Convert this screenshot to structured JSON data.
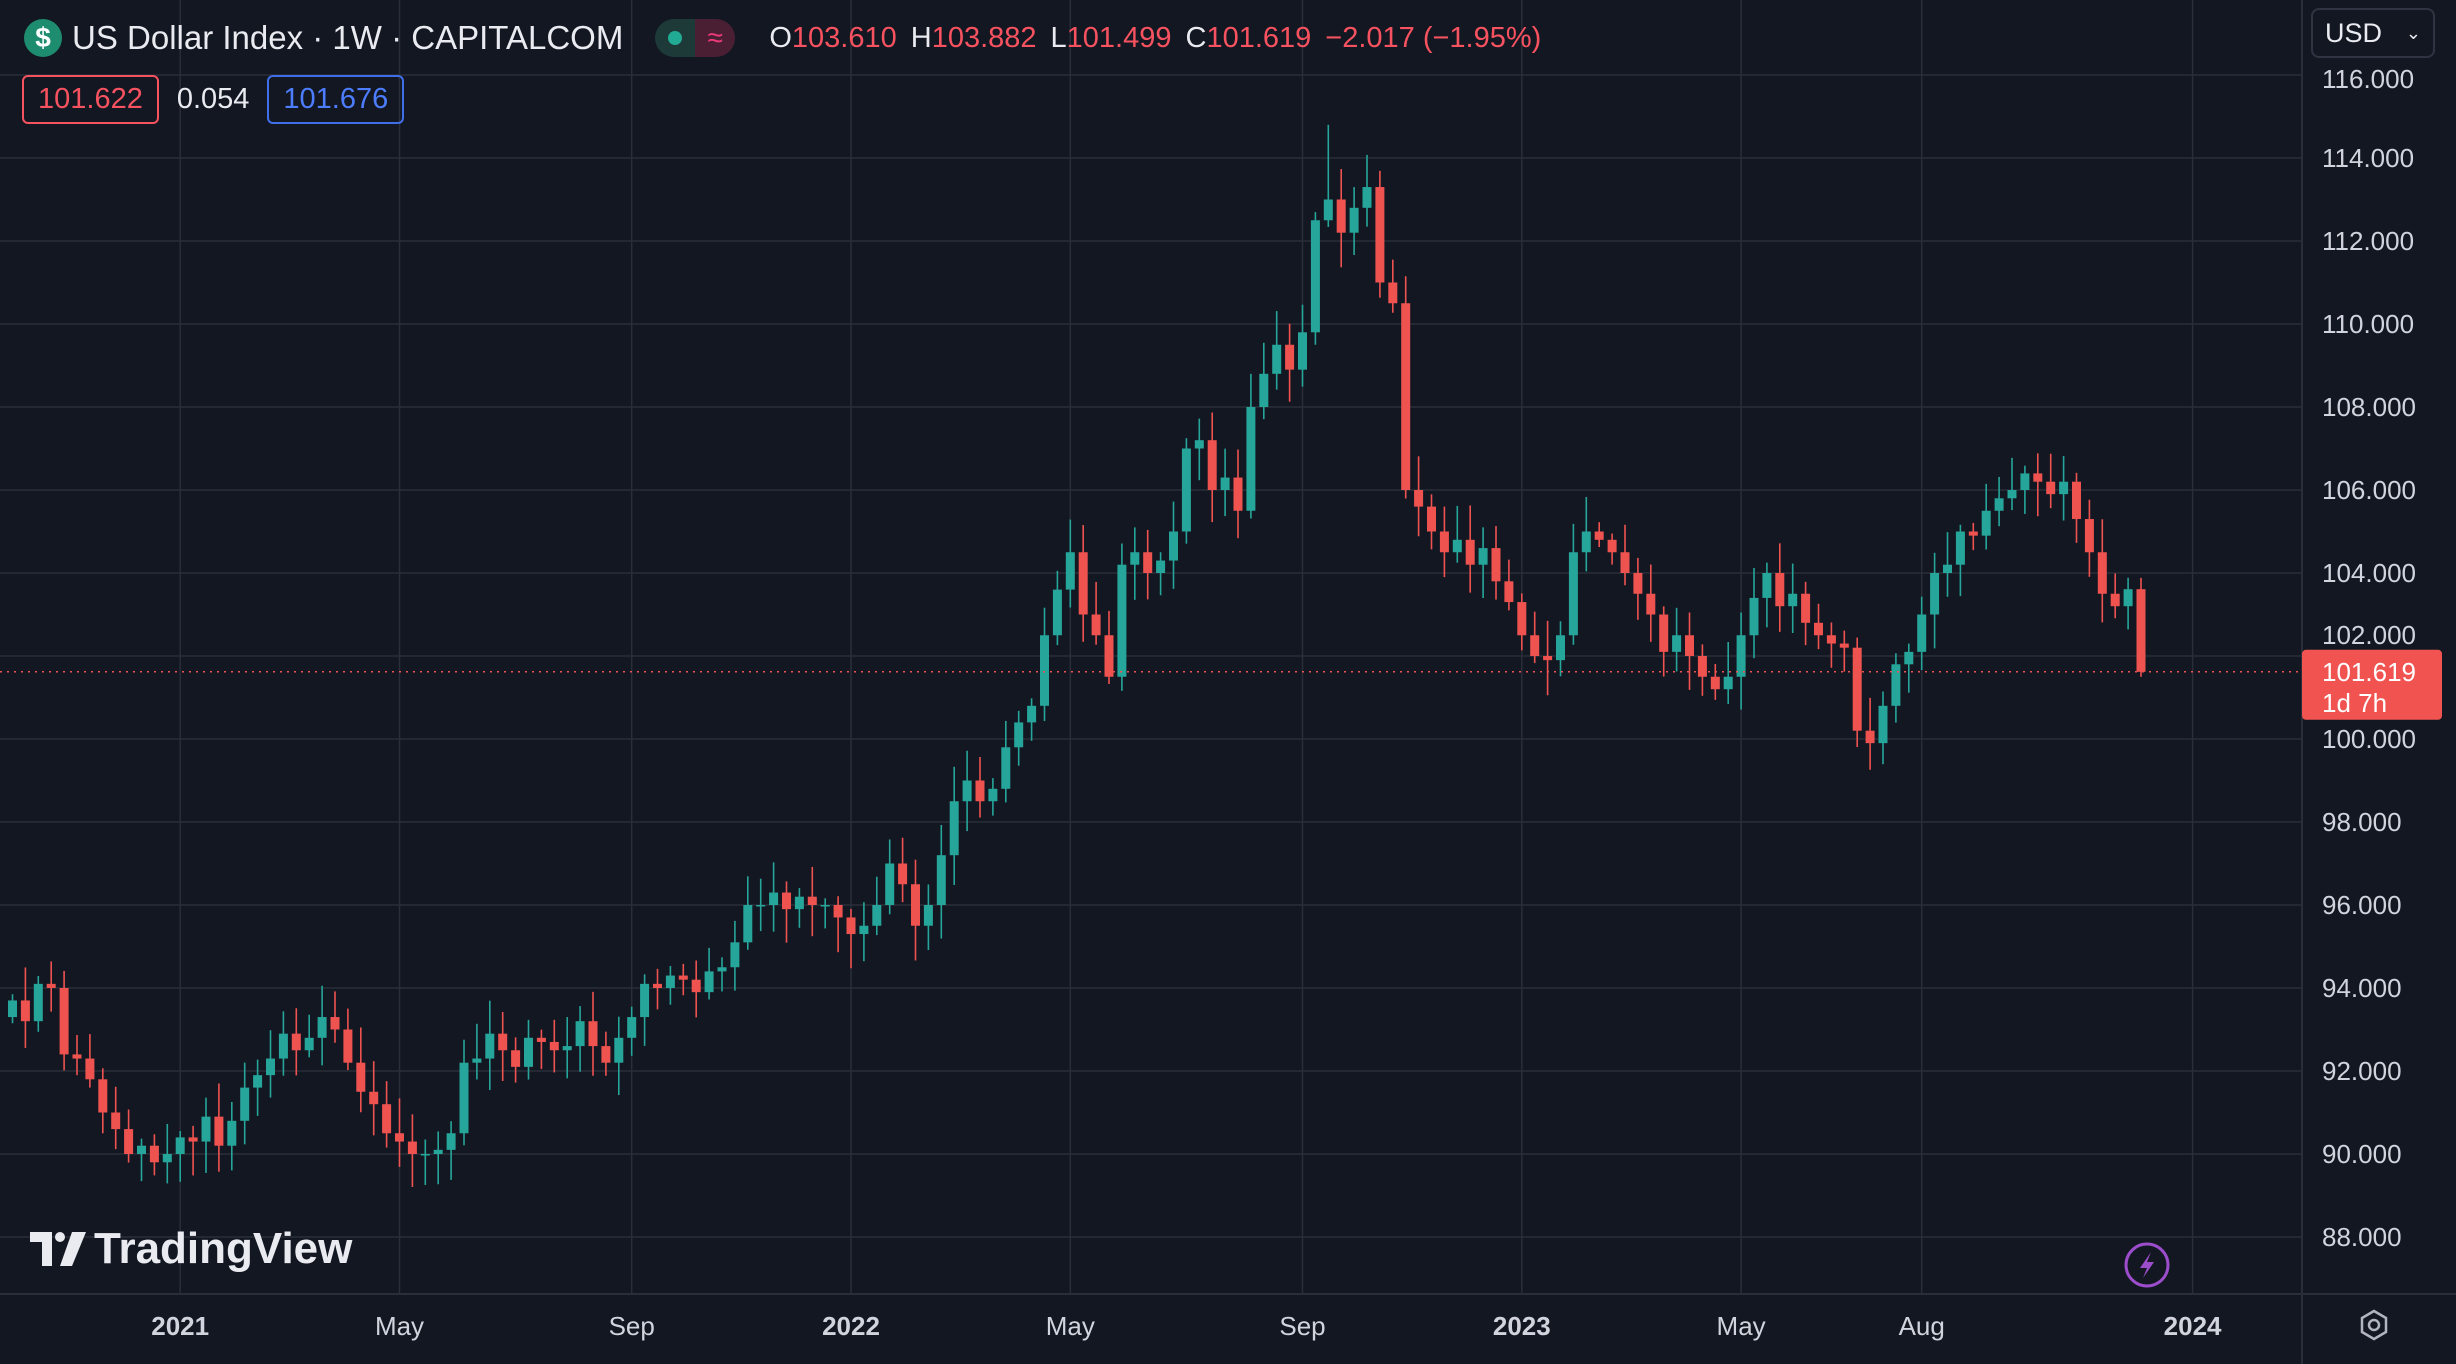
{
  "header": {
    "symbol_icon": "$",
    "title": "US Dollar Index · 1W · CAPITALCOM",
    "ohlc": {
      "o_label": "O",
      "o": "103.610",
      "h_label": "H",
      "h": "103.882",
      "l_label": "L",
      "l": "101.499",
      "c_label": "C",
      "c": "101.619",
      "change": "−2.017 (−1.95%)"
    },
    "bid": "101.622",
    "spread": "0.054",
    "ask": "101.676"
  },
  "currency_button": "USD",
  "logo_text": "TradingView",
  "colors": {
    "up": "#26a69a",
    "down": "#ef5350",
    "background": "#131722",
    "grid": "#2a2e39",
    "accent_purple": "#9c4dcc"
  },
  "chart_data": {
    "type": "candlestick",
    "title": "US Dollar Index · 1W · CAPITALCOM",
    "interval": "1W",
    "ylim": [
      86.7,
      116.4
    ],
    "y_ticks": [
      "116.000",
      "114.000",
      "112.000",
      "110.000",
      "108.000",
      "106.000",
      "104.000",
      "102.000",
      "100.000",
      "98.000",
      "96.000",
      "94.000",
      "92.000",
      "90.000",
      "88.000"
    ],
    "x_ticks": [
      {
        "label": "2021",
        "week": 13,
        "bold": true
      },
      {
        "label": "May",
        "week": 30,
        "bold": false
      },
      {
        "label": "Sep",
        "week": 48,
        "bold": false
      },
      {
        "label": "2022",
        "week": 65,
        "bold": true
      },
      {
        "label": "May",
        "week": 82,
        "bold": false
      },
      {
        "label": "Sep",
        "week": 100,
        "bold": false
      },
      {
        "label": "2023",
        "week": 117,
        "bold": true
      },
      {
        "label": "May",
        "week": 134,
        "bold": false
      },
      {
        "label": "Aug",
        "week": 148,
        "bold": false
      },
      {
        "label": "2024",
        "week": 169,
        "bold": true
      }
    ],
    "first_open": 93.3,
    "close": [
      93.7,
      93.2,
      94.1,
      94.0,
      92.4,
      92.3,
      91.8,
      91.0,
      90.6,
      90.0,
      90.2,
      89.8,
      90.0,
      90.4,
      90.3,
      90.9,
      90.2,
      90.8,
      91.6,
      91.9,
      92.3,
      92.9,
      92.5,
      92.8,
      93.3,
      93.0,
      92.2,
      91.5,
      91.2,
      90.5,
      90.3,
      90.0,
      90.0,
      90.1,
      90.5,
      92.2,
      92.3,
      92.9,
      92.5,
      92.1,
      92.8,
      92.7,
      92.5,
      92.6,
      93.2,
      92.6,
      92.2,
      92.8,
      93.3,
      94.1,
      94.0,
      94.3,
      94.2,
      93.9,
      94.4,
      94.5,
      95.1,
      96.0,
      96.0,
      96.3,
      95.9,
      96.2,
      96.0,
      96.0,
      95.7,
      95.3,
      95.5,
      96.0,
      97.0,
      96.5,
      95.5,
      96.0,
      97.2,
      98.5,
      99.0,
      98.5,
      98.8,
      99.8,
      100.4,
      100.8,
      102.5,
      103.6,
      104.5,
      103.0,
      102.5,
      101.5,
      104.2,
      104.5,
      104.0,
      104.3,
      105.0,
      107.0,
      107.2,
      106.0,
      106.3,
      105.5,
      108.0,
      108.8,
      109.5,
      108.9,
      109.8,
      112.5,
      113.0,
      112.2,
      112.8,
      113.3,
      111.0,
      110.5,
      106.0,
      105.6,
      105.0,
      104.5,
      104.8,
      104.2,
      104.6,
      103.8,
      103.3,
      102.5,
      102.0,
      101.9,
      102.5,
      104.5,
      105.0,
      104.8,
      104.5,
      104.0,
      103.5,
      103.0,
      102.1,
      102.5,
      102.0,
      101.5,
      101.2,
      101.5,
      102.5,
      103.4,
      104.0,
      103.2,
      103.5,
      102.8,
      102.5,
      102.3,
      102.2,
      100.2,
      99.9,
      100.8,
      101.8,
      102.1,
      103.0,
      104.0,
      104.2,
      105.0,
      104.9,
      105.5,
      105.8,
      106.0,
      106.4,
      106.2,
      105.9,
      106.2,
      105.3,
      104.5,
      103.5,
      103.2,
      103.61,
      101.619
    ],
    "last_candle": {
      "open": 103.61,
      "high": 103.882,
      "low": 101.499,
      "close": 101.619
    },
    "last_price_label": "101.619",
    "countdown_label": "1d 7h",
    "grid": true
  }
}
